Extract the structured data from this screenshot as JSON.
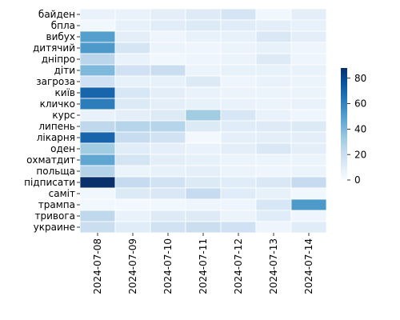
{
  "chart_data": {
    "type": "heatmap",
    "title": "",
    "xlabel": "",
    "ylabel": "",
    "columns": [
      "2024-07-08",
      "2024-07-09",
      "2024-07-10",
      "2024-07-11",
      "2024-07-12",
      "2024-07-13",
      "2024-07-14"
    ],
    "rows": [
      "байден",
      "бпла",
      "вибух",
      "дитячий",
      "дніпро",
      "діти",
      "загроза",
      "київ",
      "кличко",
      "курс",
      "липень",
      "лікарня",
      "оден",
      "охматдит",
      "польща",
      "підписати",
      "саміт",
      "трампа",
      "тривога",
      "украине"
    ],
    "values": [
      [
        6,
        6,
        9,
        11,
        15,
        3,
        9
      ],
      [
        3,
        7,
        10,
        12,
        10,
        9,
        7
      ],
      [
        50,
        9,
        4,
        7,
        7,
        13,
        9
      ],
      [
        52,
        15,
        5,
        4,
        5,
        7,
        4
      ],
      [
        25,
        6,
        3,
        4,
        5,
        11,
        4
      ],
      [
        40,
        18,
        20,
        5,
        7,
        7,
        6
      ],
      [
        18,
        7,
        7,
        12,
        4,
        6,
        5
      ],
      [
        70,
        14,
        9,
        6,
        5,
        5,
        5
      ],
      [
        62,
        12,
        9,
        7,
        6,
        5,
        6
      ],
      [
        6,
        9,
        12,
        32,
        14,
        6,
        4
      ],
      [
        24,
        26,
        26,
        12,
        10,
        11,
        12
      ],
      [
        70,
        21,
        17,
        2,
        8,
        9,
        9
      ],
      [
        32,
        10,
        8,
        6,
        9,
        13,
        9
      ],
      [
        47,
        16,
        9,
        7,
        5,
        5,
        5
      ],
      [
        27,
        5,
        7,
        8,
        5,
        4,
        5
      ],
      [
        88,
        22,
        17,
        12,
        10,
        13,
        22
      ],
      [
        3,
        12,
        13,
        22,
        10,
        7,
        3
      ],
      [
        3,
        2,
        3,
        4,
        4,
        14,
        52
      ],
      [
        24,
        6,
        11,
        11,
        5,
        10,
        4
      ],
      [
        20,
        10,
        17,
        20,
        18,
        4,
        10
      ]
    ],
    "colorbar": {
      "min": 0,
      "max": 88,
      "ticks": [
        0,
        20,
        40,
        60,
        80
      ]
    },
    "colormap": "Blues",
    "grid": false
  }
}
